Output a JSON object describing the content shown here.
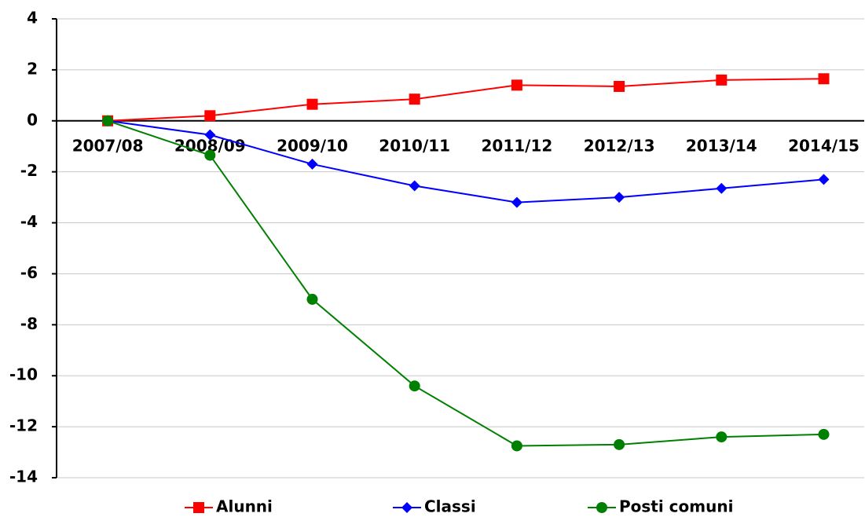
{
  "chart_data": {
    "type": "line",
    "categories": [
      "2007/08",
      "2008/09",
      "2009/10",
      "2010/11",
      "2011/12",
      "2012/13",
      "2013/14",
      "2014/15"
    ],
    "series": [
      {
        "name": "Alunni",
        "color": "#ff0000",
        "marker": "square",
        "values": [
          0,
          0.2,
          0.65,
          0.85,
          1.4,
          1.35,
          1.6,
          1.65
        ]
      },
      {
        "name": "Classi",
        "color": "#0000ff",
        "marker": "diamond",
        "values": [
          0,
          -0.55,
          -1.7,
          -2.55,
          -3.2,
          -3.0,
          -2.65,
          -2.3
        ]
      },
      {
        "name": "Posti comuni",
        "color": "#008000",
        "marker": "circle",
        "values": [
          0,
          -1.35,
          -7.0,
          -10.4,
          -12.75,
          -12.7,
          -12.4,
          -12.3
        ]
      }
    ],
    "ylim": [
      -14,
      4
    ],
    "yticks": [
      4,
      2,
      0,
      -2,
      -4,
      -6,
      -8,
      -10,
      -12,
      -14
    ],
    "grid": true,
    "legend": "bottom"
  }
}
